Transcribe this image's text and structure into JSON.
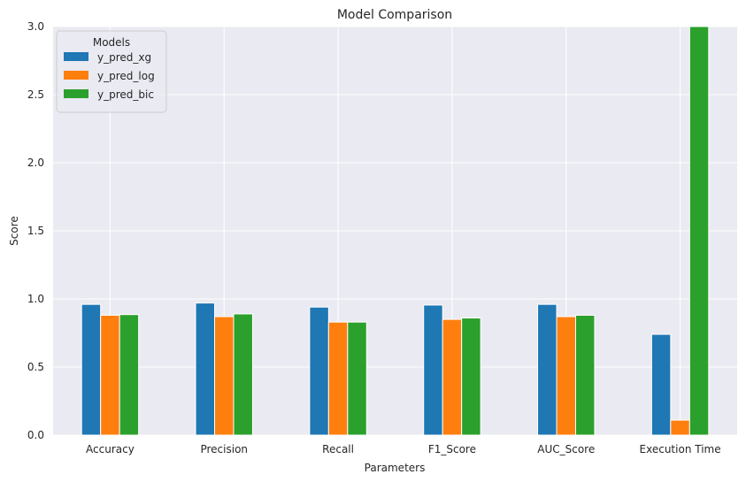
{
  "chart_data": {
    "type": "bar",
    "title": "Model Comparison",
    "xlabel": "Parameters",
    "ylabel": "Score",
    "categories": [
      "Accuracy",
      "Precision",
      "Recall",
      "F1_Score",
      "AUC_Score",
      "Execution Time"
    ],
    "series": [
      {
        "name": "y_pred_xg",
        "color": "#1f77b4",
        "values": [
          0.96,
          0.97,
          0.94,
          0.955,
          0.96,
          0.74
        ]
      },
      {
        "name": "y_pred_log",
        "color": "#ff7f0e",
        "values": [
          0.88,
          0.87,
          0.83,
          0.85,
          0.87,
          0.11
        ]
      },
      {
        "name": "y_pred_bic",
        "color": "#2ca02c",
        "values": [
          0.885,
          0.89,
          0.83,
          0.86,
          0.88,
          3.0
        ]
      }
    ],
    "ylim": [
      0,
      3.0
    ],
    "yticks": [
      "0.0",
      "0.5",
      "1.0",
      "1.5",
      "2.0",
      "2.5",
      "3.0"
    ],
    "legend": {
      "title": "Models",
      "placement": "top-left"
    },
    "grid": true,
    "background": "#eaeaf2",
    "grid_color": "#ffffff"
  }
}
